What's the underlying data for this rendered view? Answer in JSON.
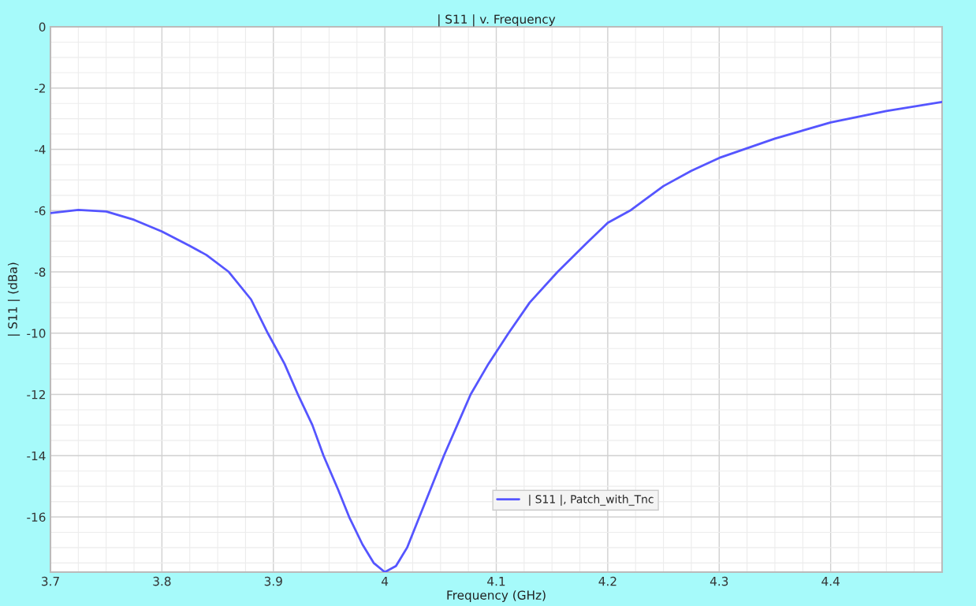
{
  "chart_data": {
    "type": "line",
    "title": "| S11 | v. Frequency",
    "xlabel": "Frequency (GHz)",
    "ylabel": "| S11 | (dBa)",
    "series": [
      {
        "name": "| S11 |, Patch_with_Tnc",
        "color": "#5555ff",
        "x": [
          3.7,
          3.725,
          3.75,
          3.775,
          3.8,
          3.825,
          3.84,
          3.86,
          3.88,
          3.895,
          3.91,
          3.922,
          3.935,
          3.945,
          3.958,
          3.968,
          3.98,
          3.99,
          4.0,
          4.01,
          4.02,
          4.031,
          4.042,
          4.053,
          4.065,
          4.077,
          4.093,
          4.111,
          4.13,
          4.155,
          4.18,
          4.2,
          4.22,
          4.25,
          4.275,
          4.3,
          4.35,
          4.4,
          4.45,
          4.5
        ],
        "values": [
          -6.08,
          -5.98,
          -6.03,
          -6.3,
          -6.68,
          -7.15,
          -7.45,
          -8.0,
          -8.9,
          -10.0,
          -11.0,
          -12.0,
          -13.0,
          -14.0,
          -15.1,
          -16.0,
          -16.9,
          -17.5,
          -17.8,
          -17.6,
          -17.0,
          -16.0,
          -15.0,
          -14.0,
          -13.0,
          -12.0,
          -11.0,
          -10.0,
          -9.0,
          -8.0,
          -7.1,
          -6.4,
          -6.0,
          -5.2,
          -4.7,
          -4.28,
          -3.65,
          -3.12,
          -2.75,
          -2.45
        ]
      }
    ],
    "xlim": [
      3.7,
      4.5
    ],
    "ylim": [
      -17.8,
      0
    ],
    "xticks": [
      3.7,
      3.8,
      3.9,
      4,
      4.1,
      4.2,
      4.3,
      4.4
    ],
    "yticks": [
      -16,
      -14,
      -12,
      -10,
      -8,
      -6,
      -4,
      -2,
      0
    ],
    "grid": true,
    "legend": "bottom right",
    "marker": "none",
    "line_style": "solid"
  }
}
